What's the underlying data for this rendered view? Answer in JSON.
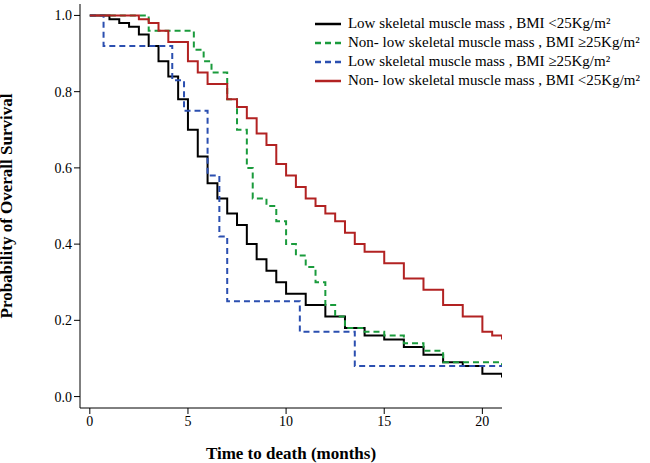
{
  "chart_data": {
    "type": "line",
    "title": null,
    "x_label": "Time to death (months)",
    "y_label": "Probability of Overall Survival",
    "xlim": [
      -0.5,
      21
    ],
    "xticks": [
      0,
      5,
      10,
      15,
      20
    ],
    "ylim": [
      -0.03,
      1.03
    ],
    "yticks": [
      {
        "value": 0,
        "label": "0.0"
      },
      0.2,
      0.4,
      0.6,
      0.8,
      {
        "value": 1,
        "label": "1.0"
      }
    ],
    "grid": false,
    "legend": "upper right",
    "series": [
      {
        "name": "Low skeletal muscle mass , BMI <25Kg/m²",
        "color": "#000000",
        "line_style": "solid",
        "x": [
          0,
          1,
          1.5,
          2,
          2.5,
          3,
          3.5,
          4,
          4.5,
          5,
          5.5,
          6,
          6.5,
          7,
          7.5,
          8,
          8.5,
          9,
          9.5,
          10,
          11,
          12,
          13,
          14,
          15,
          16,
          17,
          18,
          19,
          20,
          21
        ],
        "values": [
          1,
          0.99,
          0.98,
          0.97,
          0.95,
          0.92,
          0.88,
          0.84,
          0.78,
          0.7,
          0.63,
          0.56,
          0.52,
          0.48,
          0.45,
          0.4,
          0.36,
          0.33,
          0.3,
          0.27,
          0.24,
          0.21,
          0.18,
          0.16,
          0.15,
          0.13,
          0.11,
          0.09,
          0.08,
          0.06,
          0.05
        ]
      },
      {
        "name": "Non- low skeletal muscle mass , BMI ≥25Kg/m²",
        "color": "#1a9b3c",
        "line_style": "dashed",
        "x": [
          0,
          3,
          5.3,
          5.8,
          6.2,
          7,
          7.5,
          8,
          8.3,
          9,
          9.5,
          10,
          10.5,
          11,
          11.5,
          12,
          12.5,
          13,
          14,
          15,
          16,
          17,
          18,
          21
        ],
        "values": [
          1,
          0.96,
          0.91,
          0.88,
          0.85,
          0.78,
          0.7,
          0.6,
          0.52,
          0.5,
          0.46,
          0.4,
          0.37,
          0.34,
          0.3,
          0.24,
          0.21,
          0.18,
          0.17,
          0.16,
          0.14,
          0.12,
          0.09,
          0.08
        ]
      },
      {
        "name": "Low skeletal muscle mass , BMI ≥25Kg/m²",
        "color": "#2b4fb0",
        "line_style": "dashed",
        "x": [
          0,
          0.7,
          4.2,
          4.8,
          6,
          6.6,
          7,
          10.7,
          13.5,
          21
        ],
        "values": [
          1,
          0.92,
          0.83,
          0.75,
          0.58,
          0.42,
          0.25,
          0.17,
          0.08,
          0.08
        ]
      },
      {
        "name": "Non- low skeletal muscle mass , BMI <25Kg/m²",
        "color": "#b22222",
        "line_style": "solid",
        "x": [
          0,
          2.5,
          3,
          3.5,
          4,
          5,
          5.5,
          6,
          7,
          7.5,
          8,
          8.5,
          9,
          9.5,
          10,
          10.5,
          11,
          11.5,
          12,
          12.5,
          13,
          13.5,
          14,
          15,
          16,
          17,
          18,
          19,
          20,
          20.5,
          21
        ],
        "values": [
          1,
          0.99,
          0.98,
          0.96,
          0.93,
          0.88,
          0.85,
          0.82,
          0.78,
          0.76,
          0.73,
          0.69,
          0.66,
          0.61,
          0.58,
          0.55,
          0.52,
          0.5,
          0.48,
          0.46,
          0.43,
          0.4,
          0.38,
          0.35,
          0.31,
          0.28,
          0.24,
          0.21,
          0.17,
          0.16,
          0.15
        ]
      }
    ]
  }
}
